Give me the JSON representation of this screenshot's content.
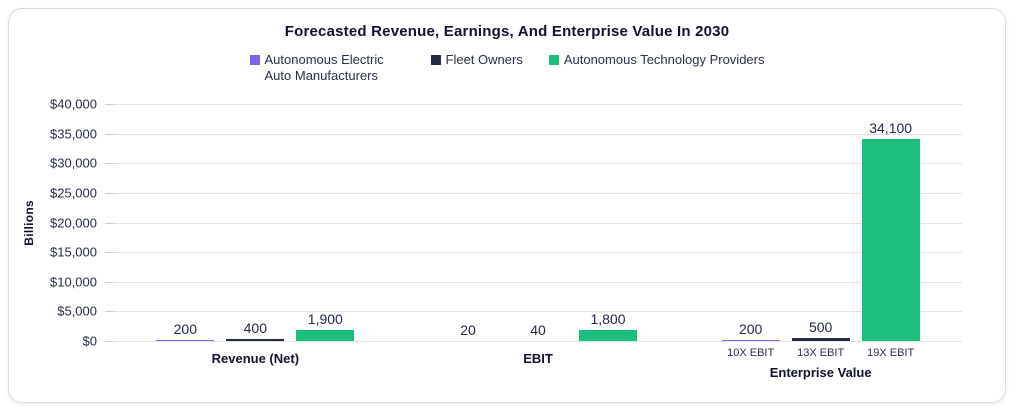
{
  "chart_data": {
    "type": "bar",
    "title": "Forecasted Revenue, Earnings, And Enterprise Value In 2030",
    "ylabel": "Billions",
    "ylim": [
      0,
      40000
    ],
    "ytick_step": 5000,
    "ytick_prefix": "$",
    "yticks": [
      0,
      5000,
      10000,
      15000,
      20000,
      25000,
      30000,
      35000,
      40000
    ],
    "grid": true,
    "legend_position": "top",
    "categories": [
      "Revenue (Net)",
      "EBIT",
      "Enterprise Value"
    ],
    "series": [
      {
        "name": "Autonomous Electric Auto Manufacturers",
        "color": "#7c64e4",
        "values": [
          200,
          20,
          200
        ]
      },
      {
        "name": "Fleet Owners",
        "color": "#242a45",
        "values": [
          400,
          40,
          500
        ]
      },
      {
        "name": "Autonomous Technology Providers",
        "color": "#1cbe7b",
        "values": [
          1900,
          1800,
          34100
        ]
      }
    ],
    "bar_sublabels": {
      "Enterprise Value": [
        "10X EBIT",
        "13X EBIT",
        "19X EBIT"
      ]
    },
    "colors": {
      "background": "#ffffff",
      "card_border": "#d8dae3",
      "gridline": "#e0e3e9",
      "text": "#232946"
    }
  }
}
